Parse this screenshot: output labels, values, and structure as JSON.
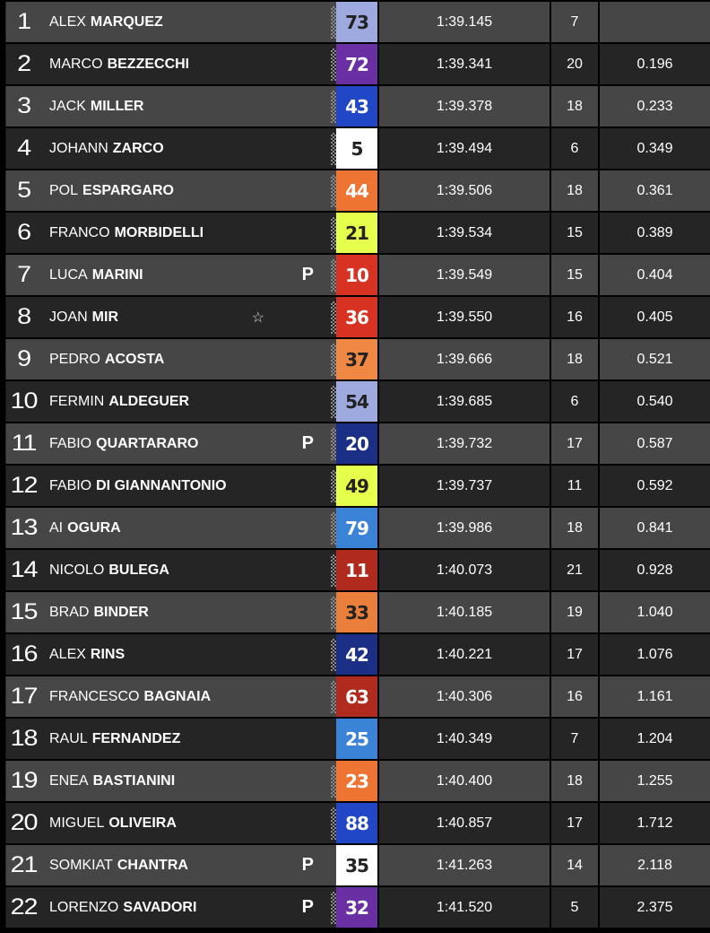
{
  "rows": [
    {
      "pos": "1",
      "first": "ALEX",
      "last": "MARQUEZ",
      "num": "73",
      "bg": "#9eaadf",
      "fg": "#222",
      "time": "1:39.145",
      "laps": "7",
      "gap": "",
      "flag": "",
      "star": false,
      "checker": true
    },
    {
      "pos": "2",
      "first": "MARCO",
      "last": "BEZZECCHI",
      "num": "72",
      "bg": "#6a2fa3",
      "fg": "#fff",
      "time": "1:39.341",
      "laps": "20",
      "gap": "0.196",
      "flag": "",
      "star": false,
      "checker": true
    },
    {
      "pos": "3",
      "first": "JACK",
      "last": "MILLER",
      "num": "43",
      "bg": "#2147c6",
      "fg": "#fff",
      "time": "1:39.378",
      "laps": "18",
      "gap": "0.233",
      "flag": "",
      "star": false,
      "checker": true
    },
    {
      "pos": "4",
      "first": "JOHANN",
      "last": "ZARCO",
      "num": "5",
      "bg": "#ffffff",
      "fg": "#222",
      "time": "1:39.494",
      "laps": "6",
      "gap": "0.349",
      "flag": "",
      "star": false,
      "checker": true
    },
    {
      "pos": "5",
      "first": "POL",
      "last": "ESPARGARO",
      "num": "44",
      "bg": "#ee7433",
      "fg": "#fff",
      "time": "1:39.506",
      "laps": "18",
      "gap": "0.361",
      "flag": "",
      "star": false,
      "checker": true
    },
    {
      "pos": "6",
      "first": "FRANCO",
      "last": "MORBIDELLI",
      "num": "21",
      "bg": "#e6ff4d",
      "fg": "#222",
      "time": "1:39.534",
      "laps": "15",
      "gap": "0.389",
      "flag": "",
      "star": false,
      "checker": true
    },
    {
      "pos": "7",
      "first": "LUCA",
      "last": "MARINI",
      "num": "10",
      "bg": "#d83322",
      "fg": "#fff",
      "time": "1:39.549",
      "laps": "15",
      "gap": "0.404",
      "flag": "P",
      "star": false,
      "checker": true
    },
    {
      "pos": "8",
      "first": "JOAN",
      "last": "MIR",
      "num": "36",
      "bg": "#d83322",
      "fg": "#fff",
      "time": "1:39.550",
      "laps": "16",
      "gap": "0.405",
      "flag": "",
      "star": true,
      "checker": true
    },
    {
      "pos": "9",
      "first": "PEDRO",
      "last": "ACOSTA",
      "num": "37",
      "bg": "#ee8843",
      "fg": "#222",
      "time": "1:39.666",
      "laps": "18",
      "gap": "0.521",
      "flag": "",
      "star": false,
      "checker": true
    },
    {
      "pos": "10",
      "first": "FERMIN",
      "last": "ALDEGUER",
      "num": "54",
      "bg": "#9eaadf",
      "fg": "#222",
      "time": "1:39.685",
      "laps": "6",
      "gap": "0.540",
      "flag": "",
      "star": false,
      "checker": true
    },
    {
      "pos": "11",
      "first": "FABIO",
      "last": "QUARTARARO",
      "num": "20",
      "bg": "#1b2f86",
      "fg": "#fff",
      "time": "1:39.732",
      "laps": "17",
      "gap": "0.587",
      "flag": "P",
      "star": false,
      "checker": true
    },
    {
      "pos": "12",
      "first": "FABIO",
      "last": "DI GIANNANTONIO",
      "num": "49",
      "bg": "#e6ff4d",
      "fg": "#222",
      "time": "1:39.737",
      "laps": "11",
      "gap": "0.592",
      "flag": "",
      "star": false,
      "checker": true
    },
    {
      "pos": "13",
      "first": "AI",
      "last": "OGURA",
      "num": "79",
      "bg": "#3b83d6",
      "fg": "#fff",
      "time": "1:39.986",
      "laps": "18",
      "gap": "0.841",
      "flag": "",
      "star": false,
      "checker": true
    },
    {
      "pos": "14",
      "first": "NICOLO",
      "last": "BULEGA",
      "num": "11",
      "bg": "#b02a1e",
      "fg": "#fff",
      "time": "1:40.073",
      "laps": "21",
      "gap": "0.928",
      "flag": "",
      "star": false,
      "checker": true
    },
    {
      "pos": "15",
      "first": "BRAD",
      "last": "BINDER",
      "num": "33",
      "bg": "#ea7f3c",
      "fg": "#222",
      "time": "1:40.185",
      "laps": "19",
      "gap": "1.040",
      "flag": "",
      "star": false,
      "checker": true
    },
    {
      "pos": "16",
      "first": "ALEX",
      "last": "RINS",
      "num": "42",
      "bg": "#1b2f86",
      "fg": "#fff",
      "time": "1:40.221",
      "laps": "17",
      "gap": "1.076",
      "flag": "",
      "star": false,
      "checker": true
    },
    {
      "pos": "17",
      "first": "FRANCESCO",
      "last": "BAGNAIA",
      "num": "63",
      "bg": "#b02a1e",
      "fg": "#fff",
      "time": "1:40.306",
      "laps": "16",
      "gap": "1.161",
      "flag": "",
      "star": false,
      "checker": true
    },
    {
      "pos": "18",
      "first": "RAUL",
      "last": "FERNANDEZ",
      "num": "25",
      "bg": "#3b83d6",
      "fg": "#fff",
      "time": "1:40.349",
      "laps": "7",
      "gap": "1.204",
      "flag": "",
      "star": false,
      "checker": false
    },
    {
      "pos": "19",
      "first": "ENEA",
      "last": "BASTIANINI",
      "num": "23",
      "bg": "#ee7433",
      "fg": "#fff",
      "time": "1:40.400",
      "laps": "18",
      "gap": "1.255",
      "flag": "",
      "star": false,
      "checker": true
    },
    {
      "pos": "20",
      "first": "MIGUEL",
      "last": "OLIVEIRA",
      "num": "88",
      "bg": "#2147c6",
      "fg": "#fff",
      "time": "1:40.857",
      "laps": "17",
      "gap": "1.712",
      "flag": "",
      "star": false,
      "checker": true
    },
    {
      "pos": "21",
      "first": "SOMKIAT",
      "last": "CHANTRA",
      "num": "35",
      "bg": "#ffffff",
      "fg": "#222",
      "time": "1:41.263",
      "laps": "14",
      "gap": "2.118",
      "flag": "P",
      "star": false,
      "checker": false
    },
    {
      "pos": "22",
      "first": "LORENZO",
      "last": "SAVADORI",
      "num": "32",
      "bg": "#6a2fa3",
      "fg": "#fff",
      "time": "1:41.520",
      "laps": "5",
      "gap": "2.375",
      "flag": "P",
      "star": false,
      "checker": true
    }
  ],
  "star_glyph": "☆"
}
